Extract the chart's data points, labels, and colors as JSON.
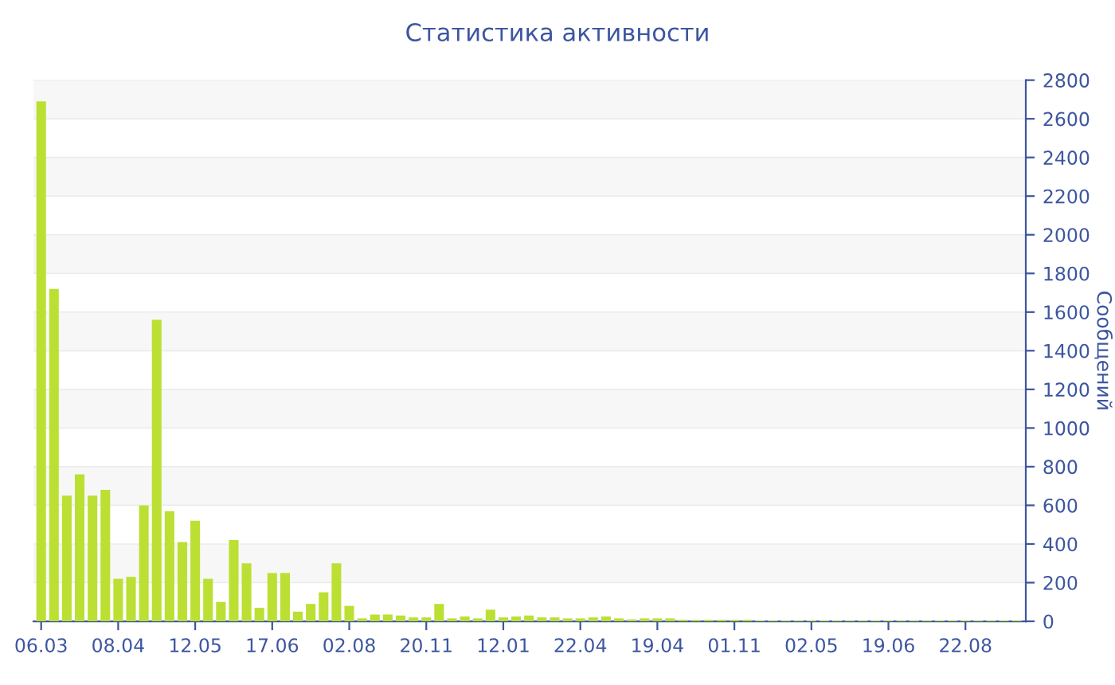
{
  "chart_data": {
    "type": "bar",
    "title": "Статистика активности",
    "ylabel": "Сообщений",
    "categories": [
      "06.03",
      null,
      null,
      null,
      null,
      null,
      "08.04",
      null,
      null,
      null,
      null,
      null,
      "12.05",
      null,
      null,
      null,
      null,
      null,
      "17.06",
      null,
      null,
      null,
      null,
      null,
      "02.08",
      null,
      null,
      null,
      null,
      null,
      "20.11",
      null,
      null,
      null,
      null,
      null,
      "12.01",
      null,
      null,
      null,
      null,
      null,
      "22.04",
      null,
      null,
      null,
      null,
      null,
      "19.04",
      null,
      null,
      null,
      null,
      null,
      "01.11",
      null,
      null,
      null,
      null,
      null,
      "02.05",
      null,
      null,
      null,
      null,
      null,
      "19.06",
      null,
      null,
      null,
      null,
      null,
      "22.08",
      null,
      null,
      null,
      null
    ],
    "values": [
      2690,
      1720,
      650,
      760,
      650,
      680,
      220,
      230,
      600,
      1560,
      570,
      410,
      520,
      220,
      100,
      420,
      300,
      70,
      250,
      250,
      50,
      90,
      150,
      300,
      80,
      15,
      35,
      35,
      30,
      20,
      20,
      90,
      15,
      25,
      15,
      60,
      20,
      25,
      30,
      20,
      20,
      15,
      15,
      20,
      25,
      15,
      10,
      15,
      15,
      15,
      8,
      8,
      8,
      8,
      8,
      8,
      5,
      5,
      5,
      5,
      5,
      5,
      5,
      5,
      5,
      5,
      5,
      5,
      5,
      5,
      5,
      5,
      5,
      5,
      5,
      5,
      5
    ],
    "color": "#bbe033",
    "ylim": [
      0,
      2800
    ],
    "yticks": [
      0,
      200,
      400,
      600,
      800,
      1000,
      1200,
      1400,
      1600,
      1800,
      2000,
      2200,
      2400,
      2600,
      2800
    ],
    "grid": "y"
  }
}
